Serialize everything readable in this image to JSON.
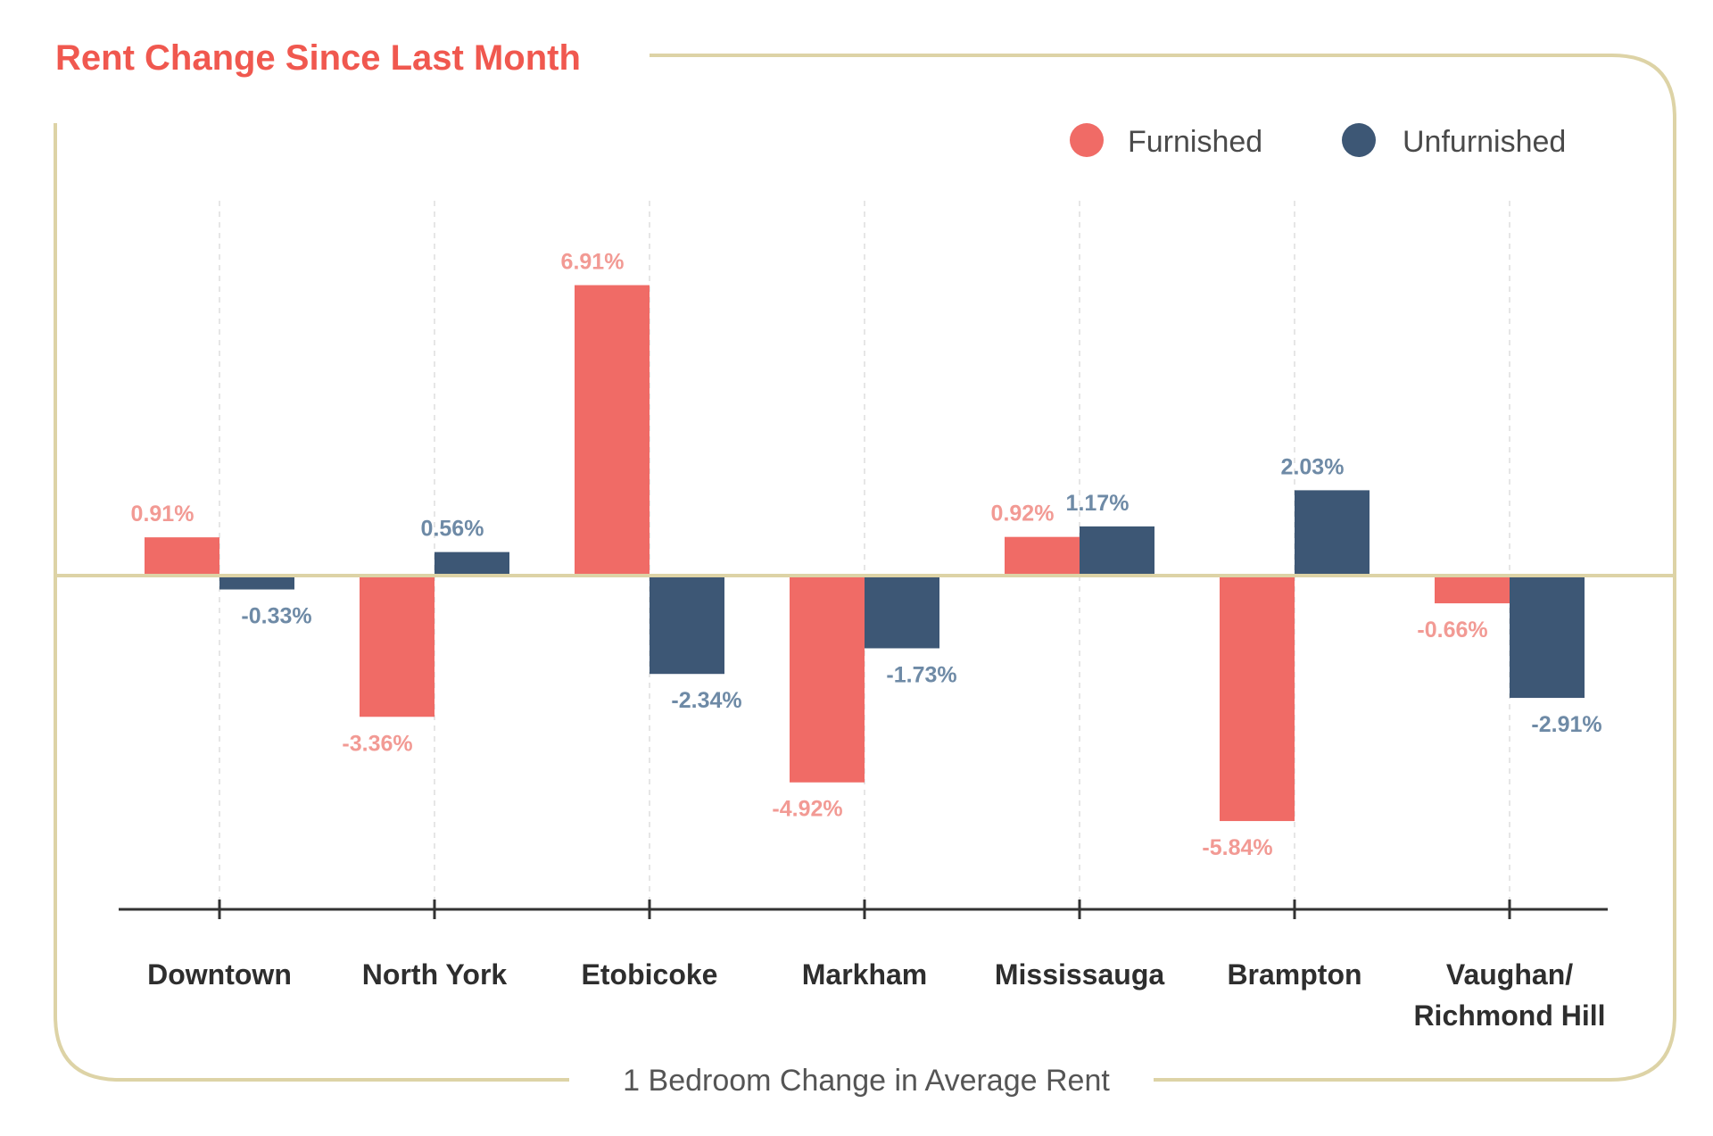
{
  "chart_data": {
    "type": "bar",
    "title": "Rent Change Since Last Month",
    "xlabel": "1 Bedroom Change in Average Rent",
    "categories": [
      "Downtown",
      "North York",
      "Etobicoke",
      "Markham",
      "Mississauga",
      "Brampton",
      "Vaughan/\nRichmond Hill"
    ],
    "series": [
      {
        "name": "Furnished",
        "values": [
          0.91,
          -3.36,
          6.91,
          -4.92,
          0.92,
          -5.84,
          -0.66
        ],
        "labels": [
          "0.91%",
          "-3.36%",
          "6.91%",
          "-4.92%",
          "0.92%",
          "-5.84%",
          "-0.66%"
        ]
      },
      {
        "name": "Unfurnished",
        "values": [
          -0.33,
          0.56,
          -2.34,
          -1.73,
          1.17,
          2.03,
          -2.91
        ],
        "labels": [
          "-0.33%",
          "0.56%",
          "-2.34%",
          "-1.73%",
          "1.17%",
          "2.03%",
          "-2.91%"
        ]
      }
    ],
    "legend_position": "top-right",
    "grid": false,
    "ylim": [
      -10,
      7.5
    ]
  },
  "colors": {
    "title": "#f0584f",
    "furnished": "#f06b66",
    "unfurnished": "#3d5775",
    "furnished_label": "#f29a94",
    "unfurnished_label": "#6e8aa6",
    "frame": "#ddd3a6",
    "axis": "#333333",
    "guide": "#dddddd"
  }
}
